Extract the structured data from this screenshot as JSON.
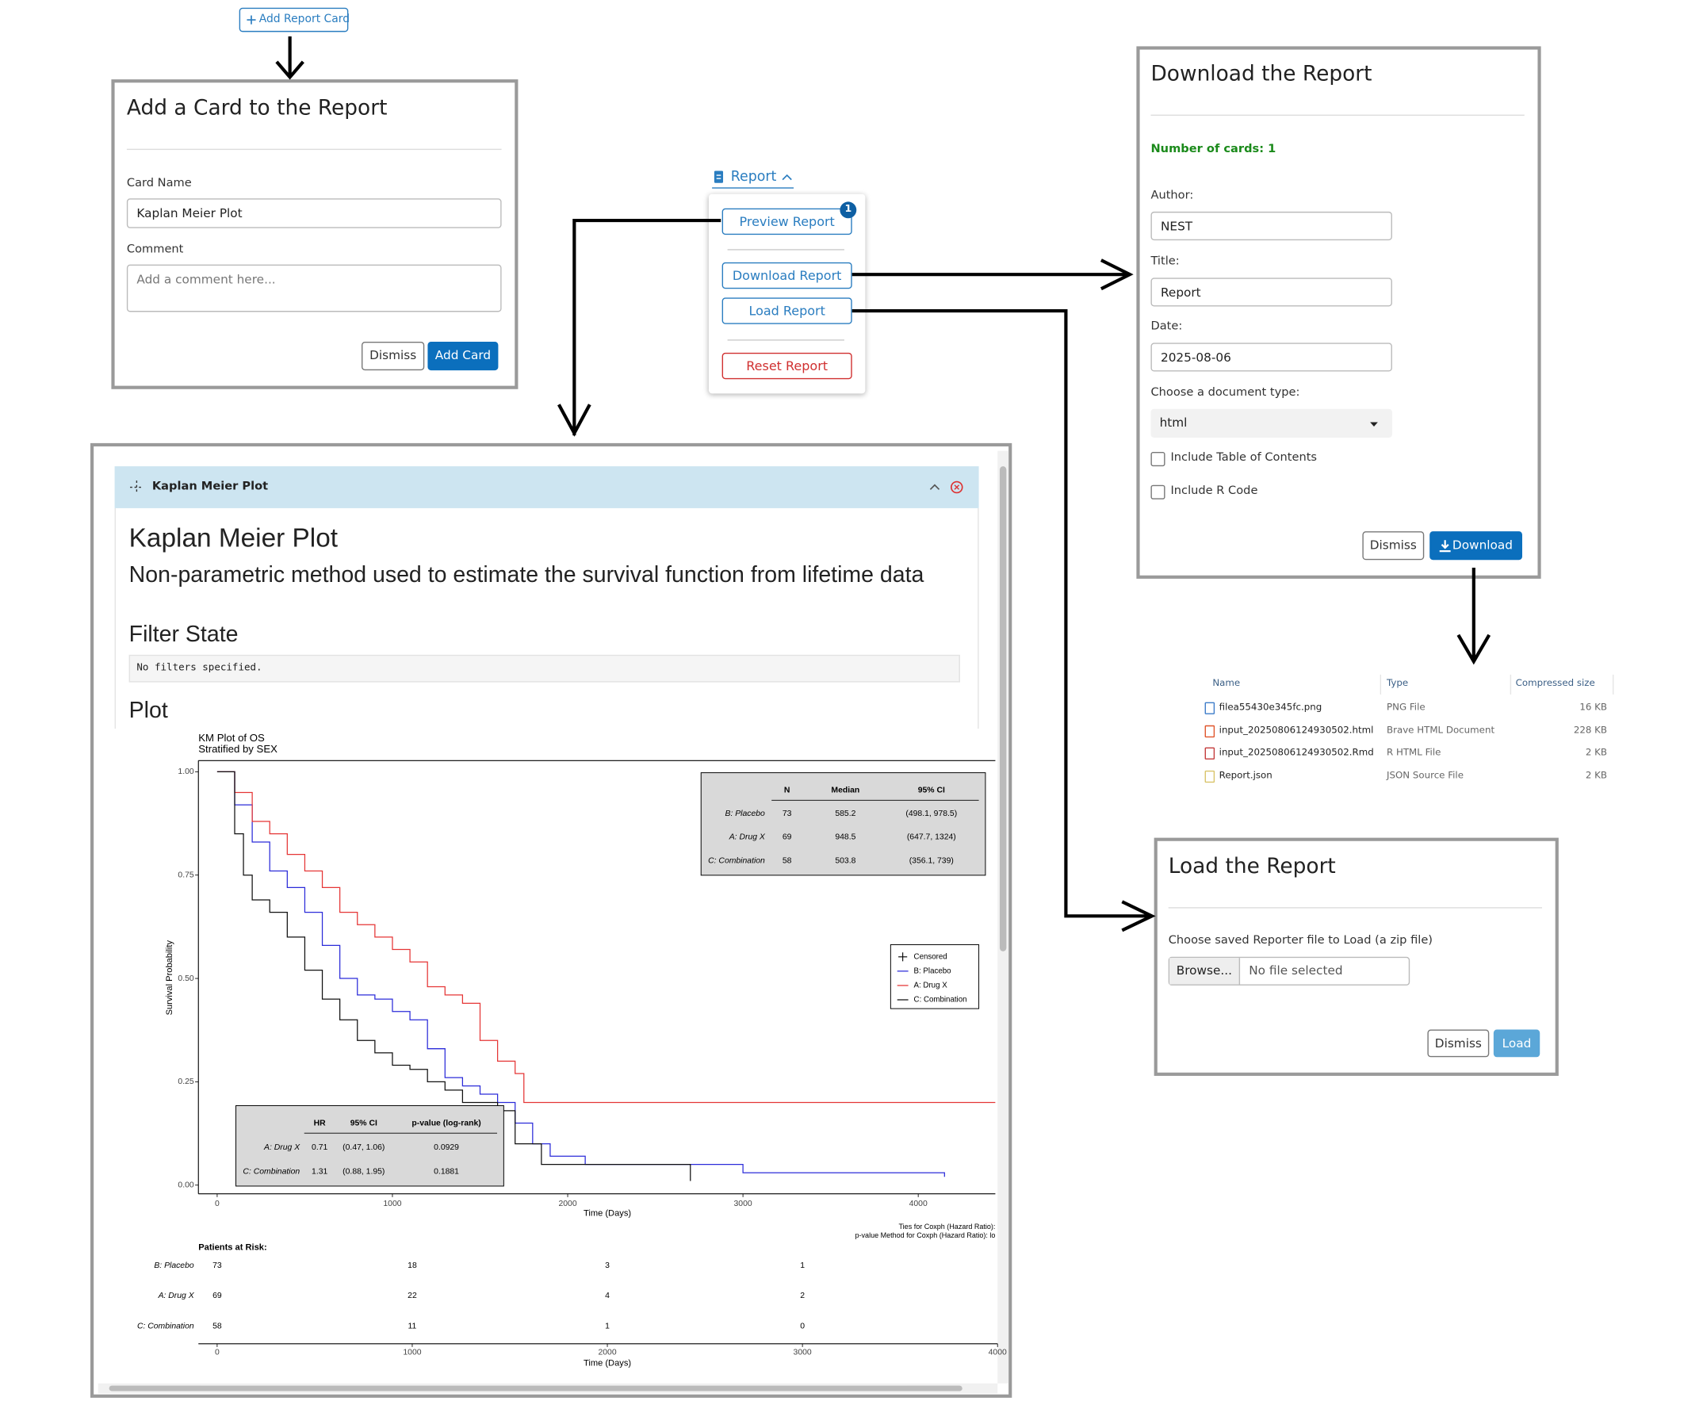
{
  "add_card_button": "Add Report Card",
  "add_card_modal": {
    "title": "Add a Card to the Report",
    "card_name_label": "Card Name",
    "card_name_value": "Kaplan Meier Plot",
    "comment_label": "Comment",
    "comment_placeholder": "Add a comment here...",
    "dismiss": "Dismiss",
    "add": "Add Card"
  },
  "report_menu": {
    "label": "Report",
    "badge": 1,
    "preview": "Preview Report",
    "download": "Download Report",
    "load": "Load Report",
    "reset": "Reset Report"
  },
  "download_modal": {
    "title": "Download the Report",
    "cards": "Number of cards: 1",
    "author_label": "Author:",
    "author_value": "NEST",
    "title_label": "Title:",
    "title_value": "Report",
    "date_label": "Date:",
    "date_value": "2025-08-06",
    "doc_type_label": "Choose a document type:",
    "doc_type_value": "html",
    "toc": "Include Table of Contents",
    "rcode": "Include R Code",
    "dismiss": "Dismiss",
    "download": "Download"
  },
  "file_list": {
    "columns": [
      "Name",
      "Type",
      "Compressed size"
    ],
    "rows": [
      [
        "filea55430e345fc.png",
        "PNG File",
        "16 KB"
      ],
      [
        "input_20250806124930502.html",
        "Brave HTML Document",
        "228 KB"
      ],
      [
        "input_20250806124930502.Rmd",
        "R HTML File",
        "2 KB"
      ],
      [
        "Report.json",
        "JSON Source File",
        "2 KB"
      ]
    ]
  },
  "load_modal": {
    "title": "Load the Report",
    "label": "Choose saved Reporter file to Load (a zip file)",
    "browse": "Browse...",
    "no_file": "No file selected",
    "dismiss": "Dismiss",
    "load": "Load"
  },
  "preview": {
    "card_header": "Kaplan Meier Plot",
    "heading": "Kaplan Meier Plot",
    "description": "Non-parametric method used to estimate the survival function from lifetime data",
    "filter_heading": "Filter State",
    "filter_text": "No filters specified.",
    "plot_heading": "Plot",
    "km_plot": {
      "type": "line",
      "title": "KM Plot of OS",
      "subtitle": "Stratified by SEX",
      "x_label": "Time (Days)",
      "y_label": "Survival Probability",
      "xlim": [
        -107,
        4440
      ],
      "ylim": [
        -0.021,
        1.027
      ],
      "xticks": [
        0,
        1000,
        2000,
        3000,
        4000
      ],
      "yticks": [
        {
          "value": 0,
          "label": "0.00"
        },
        {
          "value": 0.25,
          "label": "0.25"
        },
        {
          "value": 0.5,
          "label": "0.50"
        },
        {
          "value": 0.75,
          "label": "0.75"
        },
        {
          "value": 1,
          "label": "1.00"
        }
      ],
      "series": [
        {
          "name": "B: Placebo",
          "color": "#2b2bd9",
          "x": [
            0,
            100,
            200,
            300,
            400,
            500,
            600,
            700,
            800,
            900,
            1000,
            1100,
            1200,
            1300,
            1400,
            1500,
            1600,
            1700,
            1800,
            1900,
            2100,
            2500,
            3000,
            4150
          ],
          "y": [
            1,
            0.92,
            0.83,
            0.76,
            0.72,
            0.66,
            0.58,
            0.5,
            0.46,
            0.45,
            0.42,
            0.4,
            0.33,
            0.26,
            0.24,
            0.22,
            0.2,
            0.15,
            0.1,
            0.07,
            0.05,
            0.05,
            0.03,
            0.02
          ]
        },
        {
          "name": "A: Drug X",
          "color": "#e53535",
          "x": [
            0,
            100,
            200,
            300,
            400,
            500,
            600,
            700,
            800,
            900,
            1000,
            1100,
            1200,
            1300,
            1400,
            1500,
            1600,
            1700,
            1750,
            4440
          ],
          "y": [
            1,
            0.95,
            0.88,
            0.85,
            0.8,
            0.76,
            0.72,
            0.66,
            0.63,
            0.6,
            0.57,
            0.54,
            0.48,
            0.46,
            0.44,
            0.35,
            0.3,
            0.27,
            0.2,
            0.2
          ]
        },
        {
          "name": "C: Combination",
          "color": "#111111",
          "x": [
            0,
            100,
            150,
            200,
            300,
            400,
            500,
            600,
            700,
            800,
            900,
            1000,
            1100,
            1200,
            1300,
            1400,
            1600,
            1700,
            1850,
            2700
          ],
          "y": [
            1,
            0.85,
            0.75,
            0.69,
            0.66,
            0.6,
            0.52,
            0.45,
            0.4,
            0.35,
            0.32,
            0.29,
            0.28,
            0.25,
            0.23,
            0.2,
            0.18,
            0.1,
            0.05,
            0.01
          ]
        }
      ],
      "censored_label": "Censored",
      "summary_table": {
        "columns": [
          "N",
          "Median",
          "95% CI"
        ],
        "rows": [
          [
            "B: Placebo",
            73,
            585.2,
            "(498.1, 978.5)"
          ],
          [
            "A: Drug X",
            69,
            948.5,
            "(647.7, 1324)"
          ],
          [
            "C: Combination",
            58,
            503.8,
            "(356.1, 739)"
          ]
        ]
      },
      "hr_table": {
        "columns": [
          "HR",
          "95% CI",
          "p-value (log-rank)"
        ],
        "rows": [
          [
            "A: Drug X",
            0.71,
            "(0.47, 1.06)",
            0.0929
          ],
          [
            "C: Combination",
            1.31,
            "(0.88, 1.95)",
            0.1881
          ]
        ]
      },
      "footnotes": [
        "Ties for Coxph (Hazard Ratio):",
        "p-value Method for Coxph (Hazard Ratio): lo"
      ],
      "risk_table": {
        "title": "Patients at Risk:",
        "x_label": "Time (Days)",
        "xlim": [
          -96,
          4000
        ],
        "xticks": [
          0,
          1000,
          2000,
          3000,
          4000
        ],
        "rows": [
          {
            "name": "B: Placebo",
            "values": [
              73,
              18,
              3,
              1
            ]
          },
          {
            "name": "A: Drug X",
            "values": [
              69,
              22,
              4,
              2
            ]
          },
          {
            "name": "C: Combination",
            "values": [
              58,
              11,
              1,
              0
            ]
          }
        ]
      }
    }
  }
}
